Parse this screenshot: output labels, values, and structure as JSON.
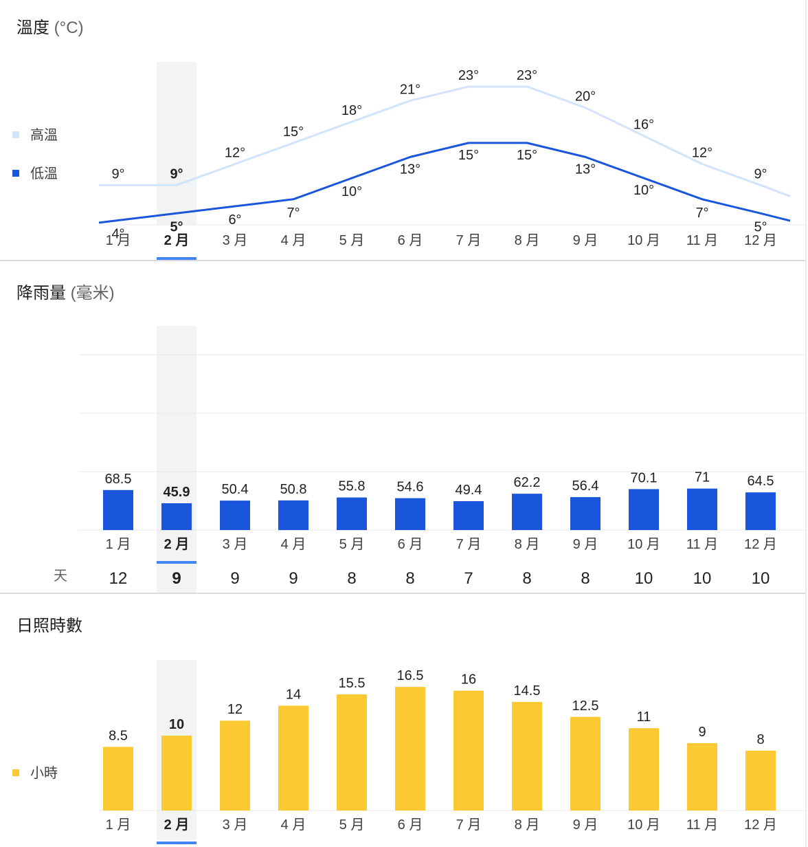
{
  "months": [
    "1 月",
    "2 月",
    "3 月",
    "4 月",
    "5 月",
    "6 月",
    "7 月",
    "8 月",
    "9 月",
    "10 月",
    "11 月",
    "12 月"
  ],
  "selected_index": 1,
  "colors": {
    "high_line": "#d2e3fc",
    "low_line": "#1a56db",
    "rain_bar": "#1a56db",
    "sun_bar": "#fbc934",
    "highlight": "#f1f3f4",
    "selected_underline": "#4285f4",
    "grid": "#e8eaed"
  },
  "temperature": {
    "title": "溫度",
    "unit": "(°C)",
    "legend_high": "高溫",
    "legend_low": "低溫"
  },
  "precipitation": {
    "title": "降雨量",
    "unit": "(毫米)",
    "days_label": "天"
  },
  "sunshine": {
    "title": "日照時數",
    "legend": "小時"
  },
  "chart_data": [
    {
      "type": "line",
      "title": "溫度 (°C)",
      "categories": [
        "1 月",
        "2 月",
        "3 月",
        "4 月",
        "5 月",
        "6 月",
        "7 月",
        "8 月",
        "9 月",
        "10 月",
        "11 月",
        "12 月"
      ],
      "series": [
        {
          "name": "高溫",
          "values": [
            9,
            9,
            12,
            15,
            18,
            21,
            23,
            23,
            20,
            16,
            12,
            9
          ]
        },
        {
          "name": "低溫",
          "values": [
            4,
            5,
            6,
            7,
            10,
            13,
            15,
            15,
            13,
            10,
            7,
            5
          ]
        }
      ],
      "legend": "left"
    },
    {
      "type": "bar",
      "title": "降雨量 (毫米)",
      "categories": [
        "1 月",
        "2 月",
        "3 月",
        "4 月",
        "5 月",
        "6 月",
        "7 月",
        "8 月",
        "9 月",
        "10 月",
        "11 月",
        "12 月"
      ],
      "values": [
        68.5,
        45.9,
        50.4,
        50.8,
        55.8,
        54.6,
        49.4,
        62.2,
        56.4,
        70.1,
        71,
        64.5
      ],
      "value_labels": [
        "68.5",
        "45.9",
        "50.4",
        "50.8",
        "55.8",
        "54.6",
        "49.4",
        "62.2",
        "56.4",
        "70.1",
        "71",
        "64.5"
      ],
      "days": [
        12,
        9,
        9,
        9,
        8,
        8,
        7,
        8,
        8,
        10,
        10,
        10
      ],
      "ylim": [
        0,
        300
      ],
      "grid": true
    },
    {
      "type": "bar",
      "title": "日照時數",
      "categories": [
        "1 月",
        "2 月",
        "3 月",
        "4 月",
        "5 月",
        "6 月",
        "7 月",
        "8 月",
        "9 月",
        "10 月",
        "11 月",
        "12 月"
      ],
      "values": [
        8.5,
        10,
        12,
        14,
        15.5,
        16.5,
        16,
        14.5,
        12.5,
        11,
        9,
        8
      ],
      "value_labels": [
        "8.5",
        "10",
        "12",
        "14",
        "15.5",
        "16.5",
        "16",
        "14.5",
        "12.5",
        "11",
        "9",
        "8"
      ],
      "series_name": "小時",
      "legend": "left"
    }
  ]
}
